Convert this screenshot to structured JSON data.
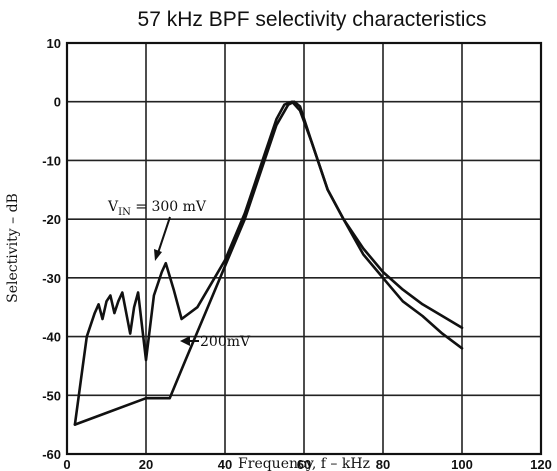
{
  "chart_data": {
    "type": "line",
    "title": "57 kHz BPF selectivity characteristics",
    "xlabel": "Frequency, f – kHz",
    "ylabel": "Selectivity – dB",
    "xlim": [
      0,
      120
    ],
    "ylim": [
      -60,
      10
    ],
    "xticks": [
      0,
      20,
      40,
      60,
      80,
      100,
      120
    ],
    "yticks": [
      10,
      0,
      -10,
      -20,
      -30,
      -40,
      -50,
      -60
    ],
    "grid": true,
    "series": [
      {
        "name": "V_IN = 300 mV",
        "points": [
          [
            2,
            -55
          ],
          [
            4,
            -45
          ],
          [
            5,
            -40
          ],
          [
            7,
            -36
          ],
          [
            8,
            -34.5
          ],
          [
            9,
            -37
          ],
          [
            10,
            -34
          ],
          [
            11,
            -33
          ],
          [
            12,
            -36
          ],
          [
            13,
            -34
          ],
          [
            14,
            -32.5
          ],
          [
            16,
            -39.5
          ],
          [
            17,
            -35
          ],
          [
            18,
            -32.5
          ],
          [
            20,
            -44
          ],
          [
            22,
            -33
          ],
          [
            24,
            -29
          ],
          [
            25,
            -27.5
          ],
          [
            27,
            -32
          ],
          [
            29,
            -37
          ],
          [
            33,
            -35
          ],
          [
            40,
            -27
          ],
          [
            45,
            -19
          ],
          [
            50,
            -9
          ],
          [
            53,
            -3
          ],
          [
            55,
            -0.5
          ],
          [
            57,
            0
          ],
          [
            59,
            -1.5
          ],
          [
            62,
            -7
          ],
          [
            66,
            -15
          ],
          [
            70,
            -20
          ],
          [
            75,
            -25
          ],
          [
            80,
            -29
          ],
          [
            85,
            -32
          ],
          [
            90,
            -34.5
          ],
          [
            95,
            -36.5
          ],
          [
            100,
            -38.5
          ]
        ]
      },
      {
        "name": "200mV",
        "points": [
          [
            2,
            -55
          ],
          [
            10,
            -53
          ],
          [
            20,
            -50.5
          ],
          [
            26,
            -50.5
          ],
          [
            30,
            -44
          ],
          [
            35,
            -36
          ],
          [
            40,
            -28
          ],
          [
            45,
            -20
          ],
          [
            50,
            -10
          ],
          [
            53,
            -4
          ],
          [
            56,
            -0.5
          ],
          [
            57.5,
            0
          ],
          [
            59,
            -0.8
          ],
          [
            62,
            -7
          ],
          [
            66,
            -15
          ],
          [
            70,
            -20
          ],
          [
            75,
            -26
          ],
          [
            80,
            -30
          ],
          [
            85,
            -34
          ],
          [
            90,
            -36.5
          ],
          [
            95,
            -39.5
          ],
          [
            100,
            -42
          ]
        ]
      }
    ],
    "annotations": [
      {
        "label_main": "V",
        "label_sub": "IN",
        "label_rest": " = 300 mV",
        "series": 0
      },
      {
        "label": "200mV",
        "series": 1
      }
    ]
  }
}
